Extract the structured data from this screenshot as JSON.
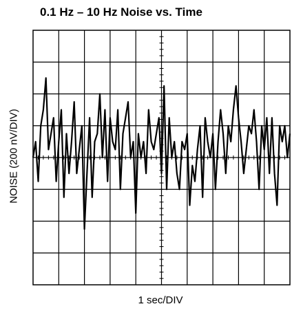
{
  "chart_data": {
    "type": "line",
    "title": "0.1 Hz – 10 Hz Noise vs. Time",
    "xlabel": "1 sec/DIV",
    "ylabel": "NOISE (200 nV/DIV)",
    "x_unit": "s",
    "y_unit": "nV",
    "xlim": [
      0,
      10
    ],
    "ylim": [
      -800,
      800
    ],
    "grid": true,
    "series": [
      {
        "x": [
          0,
          0.1,
          0.2,
          0.3,
          0.4,
          0.5,
          0.6,
          0.7,
          0.8,
          0.9,
          1.0,
          1.1,
          1.2,
          1.3,
          1.4,
          1.5,
          1.6,
          1.7,
          1.8,
          1.9,
          2.0,
          2.1,
          2.2,
          2.3,
          2.4,
          2.5,
          2.6,
          2.7,
          2.8,
          2.9,
          3.0,
          3.1,
          3.2,
          3.3,
          3.4,
          3.5,
          3.6,
          3.7,
          3.8,
          3.9,
          4.0,
          4.1,
          4.2,
          4.3,
          4.4,
          4.5,
          4.6,
          4.7,
          4.8,
          4.9,
          5.0,
          5.1,
          5.2,
          5.3,
          5.4,
          5.5,
          5.6,
          5.7,
          5.8,
          5.9,
          6.0,
          6.1,
          6.2,
          6.3,
          6.4,
          6.5,
          6.6,
          6.7,
          6.8,
          6.9,
          7.0,
          7.1,
          7.2,
          7.3,
          7.4,
          7.5,
          7.6,
          7.7,
          7.8,
          7.9,
          8.0,
          8.1,
          8.2,
          8.3,
          8.4,
          8.5,
          8.6,
          8.7,
          8.8,
          8.9,
          9.0,
          9.1,
          9.2,
          9.3,
          9.4,
          9.5,
          9.6,
          9.7,
          9.8,
          9.9,
          10.0
        ],
        "values": [
          0,
          100,
          -150,
          200,
          300,
          500,
          50,
          150,
          250,
          -150,
          100,
          300,
          -250,
          150,
          -100,
          100,
          350,
          -100,
          50,
          200,
          -450,
          -100,
          250,
          -250,
          100,
          150,
          400,
          0,
          300,
          -150,
          250,
          100,
          50,
          300,
          -200,
          150,
          250,
          350,
          0,
          100,
          -350,
          150,
          0,
          100,
          -100,
          300,
          100,
          50,
          150,
          250,
          -100,
          450,
          -200,
          250,
          0,
          100,
          -100,
          -200,
          100,
          50,
          150,
          -300,
          -50,
          -150,
          50,
          200,
          -250,
          250,
          100,
          0,
          150,
          -200,
          100,
          300,
          150,
          -100,
          200,
          100,
          300,
          450,
          250,
          100,
          -100,
          50,
          200,
          150,
          300,
          100,
          -200,
          200,
          50,
          250,
          -100,
          250,
          -100,
          -300,
          200,
          100,
          200,
          0,
          150
        ]
      }
    ]
  }
}
